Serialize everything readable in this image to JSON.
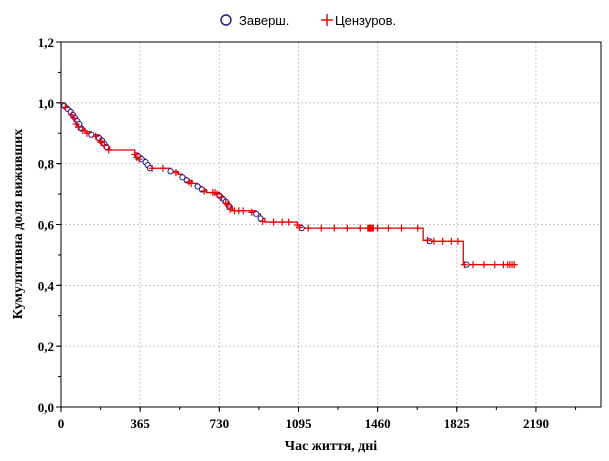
{
  "chart_data": {
    "type": "line",
    "title": "",
    "xlabel": "Час життя, дні",
    "ylabel": "Кумулятивна доля виживших",
    "xlim": [
      0,
      2490
    ],
    "ylim": [
      0,
      1.2
    ],
    "x_ticks": [
      0,
      365,
      730,
      1095,
      1460,
      1825,
      2190
    ],
    "x_tick_labels": [
      "0",
      "365",
      "730",
      "1095",
      "1460",
      "1825",
      "2190"
    ],
    "y_ticks": [
      0,
      0.2,
      0.4,
      0.6,
      0.8,
      1.0,
      1.2
    ],
    "y_tick_labels": [
      "0,0",
      "0,2",
      "0,4",
      "0,6",
      "0,8",
      "1,0",
      "1,2"
    ],
    "grid": true,
    "legend_position": "top-center",
    "legend": [
      {
        "label": "Заверш.",
        "marker": "circle",
        "color": "#1a1a8c"
      },
      {
        "label": "Цензуров.",
        "marker": "plus",
        "color": "#e60000"
      }
    ],
    "line_color": "#e60000",
    "survival_steps": [
      [
        0,
        1.0
      ],
      [
        15,
        0.99
      ],
      [
        30,
        0.98
      ],
      [
        45,
        0.97
      ],
      [
        55,
        0.96
      ],
      [
        65,
        0.95
      ],
      [
        75,
        0.94
      ],
      [
        85,
        0.93
      ],
      [
        95,
        0.915
      ],
      [
        110,
        0.905
      ],
      [
        140,
        0.895
      ],
      [
        175,
        0.885
      ],
      [
        190,
        0.875
      ],
      [
        200,
        0.865
      ],
      [
        210,
        0.855
      ],
      [
        225,
        0.845
      ],
      [
        340,
        0.835
      ],
      [
        355,
        0.825
      ],
      [
        372,
        0.815
      ],
      [
        390,
        0.805
      ],
      [
        400,
        0.795
      ],
      [
        410,
        0.785
      ],
      [
        505,
        0.775
      ],
      [
        540,
        0.765
      ],
      [
        560,
        0.755
      ],
      [
        580,
        0.745
      ],
      [
        605,
        0.735
      ],
      [
        630,
        0.725
      ],
      [
        650,
        0.715
      ],
      [
        670,
        0.705
      ],
      [
        700,
        0.705
      ],
      [
        730,
        0.695
      ],
      [
        745,
        0.685
      ],
      [
        760,
        0.675
      ],
      [
        775,
        0.66
      ],
      [
        790,
        0.645
      ],
      [
        900,
        0.635
      ],
      [
        920,
        0.62
      ],
      [
        940,
        0.608
      ],
      [
        1090,
        0.598
      ],
      [
        1110,
        0.588
      ],
      [
        1650,
        0.588
      ],
      [
        1670,
        0.548
      ],
      [
        1700,
        0.545
      ],
      [
        1840,
        0.545
      ],
      [
        1855,
        0.468
      ],
      [
        2080,
        0.468
      ]
    ],
    "complete_events": [
      [
        15,
        0.99
      ],
      [
        30,
        0.98
      ],
      [
        45,
        0.97
      ],
      [
        55,
        0.96
      ],
      [
        65,
        0.95
      ],
      [
        75,
        0.94
      ],
      [
        85,
        0.93
      ],
      [
        95,
        0.915
      ],
      [
        140,
        0.895
      ],
      [
        175,
        0.885
      ],
      [
        190,
        0.875
      ],
      [
        200,
        0.865
      ],
      [
        210,
        0.855
      ],
      [
        355,
        0.825
      ],
      [
        372,
        0.815
      ],
      [
        390,
        0.805
      ],
      [
        400,
        0.795
      ],
      [
        410,
        0.785
      ],
      [
        505,
        0.775
      ],
      [
        560,
        0.755
      ],
      [
        580,
        0.745
      ],
      [
        630,
        0.725
      ],
      [
        650,
        0.715
      ],
      [
        730,
        0.695
      ],
      [
        745,
        0.685
      ],
      [
        760,
        0.675
      ],
      [
        775,
        0.66
      ],
      [
        900,
        0.635
      ],
      [
        920,
        0.62
      ],
      [
        1110,
        0.588
      ],
      [
        1700,
        0.545
      ],
      [
        1870,
        0.468
      ]
    ],
    "censored": [
      [
        20,
        0.985
      ],
      [
        50,
        0.96
      ],
      [
        60,
        0.95
      ],
      [
        70,
        0.93
      ],
      [
        80,
        0.92
      ],
      [
        100,
        0.91
      ],
      [
        120,
        0.9
      ],
      [
        160,
        0.89
      ],
      [
        180,
        0.875
      ],
      [
        185,
        0.87
      ],
      [
        200,
        0.86
      ],
      [
        220,
        0.845
      ],
      [
        340,
        0.83
      ],
      [
        350,
        0.82
      ],
      [
        360,
        0.815
      ],
      [
        420,
        0.785
      ],
      [
        470,
        0.785
      ],
      [
        530,
        0.77
      ],
      [
        590,
        0.74
      ],
      [
        600,
        0.735
      ],
      [
        660,
        0.71
      ],
      [
        700,
        0.705
      ],
      [
        710,
        0.705
      ],
      [
        720,
        0.7
      ],
      [
        740,
        0.69
      ],
      [
        760,
        0.67
      ],
      [
        770,
        0.665
      ],
      [
        780,
        0.65
      ],
      [
        800,
        0.645
      ],
      [
        820,
        0.645
      ],
      [
        840,
        0.645
      ],
      [
        880,
        0.64
      ],
      [
        930,
        0.61
      ],
      [
        980,
        0.608
      ],
      [
        1020,
        0.608
      ],
      [
        1050,
        0.608
      ],
      [
        1090,
        0.598
      ],
      [
        1100,
        0.59
      ],
      [
        1140,
        0.588
      ],
      [
        1200,
        0.588
      ],
      [
        1260,
        0.588
      ],
      [
        1320,
        0.588
      ],
      [
        1380,
        0.588
      ],
      [
        1415,
        0.588
      ],
      [
        1420,
        0.588
      ],
      [
        1425,
        0.588
      ],
      [
        1430,
        0.588
      ],
      [
        1435,
        0.588
      ],
      [
        1440,
        0.588
      ],
      [
        1460,
        0.588
      ],
      [
        1510,
        0.588
      ],
      [
        1570,
        0.588
      ],
      [
        1645,
        0.588
      ],
      [
        1690,
        0.548
      ],
      [
        1720,
        0.545
      ],
      [
        1760,
        0.545
      ],
      [
        1800,
        0.545
      ],
      [
        1830,
        0.545
      ],
      [
        1860,
        0.468
      ],
      [
        1900,
        0.468
      ],
      [
        1950,
        0.468
      ],
      [
        2000,
        0.468
      ],
      [
        2040,
        0.468
      ],
      [
        2060,
        0.468
      ],
      [
        2070,
        0.468
      ],
      [
        2080,
        0.468
      ],
      [
        2090,
        0.468
      ]
    ]
  }
}
